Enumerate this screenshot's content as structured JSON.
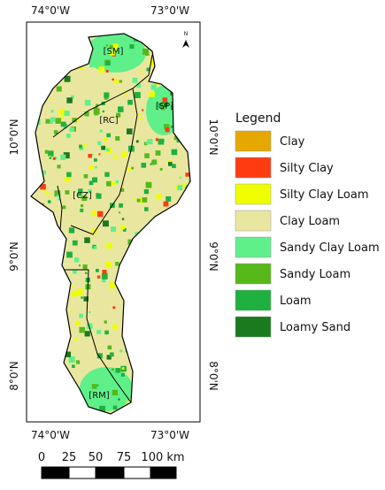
{
  "map": {
    "lon_labels": [
      "74°0'W",
      "73°0'W"
    ],
    "lat_labels": [
      "10°0'N",
      "9°0'N",
      "8°0'N"
    ],
    "north": "N",
    "regions": [
      "[SM]",
      "[SP]",
      "[RC]",
      "[CZ]",
      "[RM]"
    ],
    "legend": {
      "title": "Legend",
      "items": [
        {
          "label": "Clay",
          "color": "#e6a800"
        },
        {
          "label": "Silty Clay",
          "color": "#ff3b12"
        },
        {
          "label": "Silty Clay Loam",
          "color": "#f0ff00"
        },
        {
          "label": "Clay Loam",
          "color": "#e9e79f"
        },
        {
          "label": "Sandy Clay Loam",
          "color": "#5ff08a"
        },
        {
          "label": "Sandy Loam",
          "color": "#57b81a"
        },
        {
          "label": "Loam",
          "color": "#1eb13f"
        },
        {
          "label": "Loamy Sand",
          "color": "#1a7a1e"
        }
      ]
    },
    "scale_bar": [
      "0",
      "25",
      "50",
      "75",
      "100 km"
    ]
  }
}
